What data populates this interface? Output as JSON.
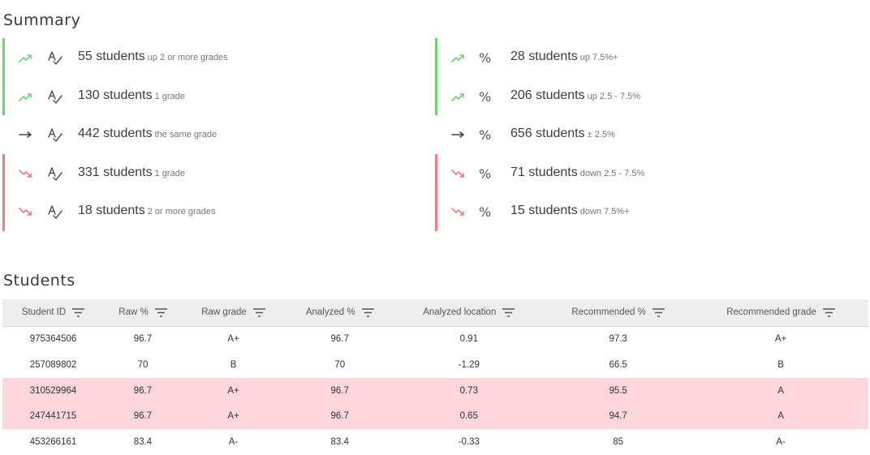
{
  "summary": {
    "title": "Summary",
    "grades": [
      {
        "trend": "up",
        "count": "55 students",
        "detail": "up 2 or more grades"
      },
      {
        "trend": "up",
        "count": "130 students",
        "detail": "1 grade"
      },
      {
        "trend": "same",
        "count": "442 students",
        "detail": "the same grade"
      },
      {
        "trend": "down",
        "count": "331 students",
        "detail": "1 grade"
      },
      {
        "trend": "down",
        "count": "18 students",
        "detail": "2 or more grades"
      }
    ],
    "percents": [
      {
        "trend": "up",
        "count": "28 students",
        "detail": "up 7.5%+"
      },
      {
        "trend": "up",
        "count": "206 students",
        "detail": "up 2.5 - 7.5%"
      },
      {
        "trend": "same",
        "count": "656 students",
        "detail": "± 2.5%"
      },
      {
        "trend": "down",
        "count": "71 students",
        "detail": "down 2.5 - 7.5%"
      },
      {
        "trend": "down",
        "count": "15 students",
        "detail": "down 7.5%+"
      }
    ],
    "percent_symbol": "%",
    "colors": {
      "up": "#6fd36f",
      "down": "#f07c85",
      "flagged_row": "#fdd7dc"
    }
  },
  "students": {
    "title": "Students",
    "columns": [
      "Student ID",
      "Raw %",
      "Raw grade",
      "Analyzed %",
      "Analyzed location",
      "Recommended %",
      "Recommended grade"
    ],
    "rows": [
      {
        "flag": false,
        "cells": [
          "975364506",
          "96.7",
          "A+",
          "96.7",
          "0.91",
          "97.3",
          "A+"
        ]
      },
      {
        "flag": false,
        "cells": [
          "257089802",
          "70",
          "B",
          "70",
          "-1.29",
          "66.5",
          "B"
        ]
      },
      {
        "flag": true,
        "cells": [
          "310529964",
          "96.7",
          "A+",
          "96.7",
          "0.73",
          "95.5",
          "A"
        ]
      },
      {
        "flag": true,
        "cells": [
          "247441715",
          "96.7",
          "A+",
          "96.7",
          "0.65",
          "94.7",
          "A"
        ]
      },
      {
        "flag": false,
        "cells": [
          "453266161",
          "83.4",
          "A-",
          "83.4",
          "-0.33",
          "85",
          "A-"
        ]
      }
    ]
  }
}
